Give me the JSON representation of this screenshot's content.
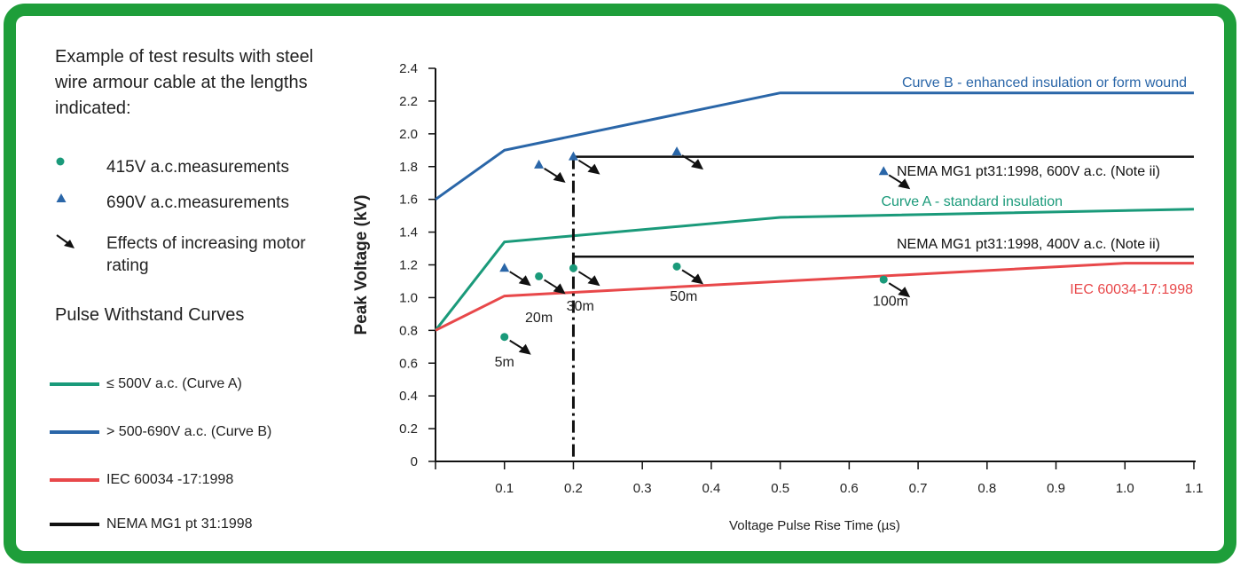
{
  "legend": {
    "intro": "Example of test results with steel wire armour cable at the lengths indicated:",
    "markers": [
      {
        "symbol": "circle",
        "label": "415V a.c.measurements",
        "color": "#1a9a7a"
      },
      {
        "symbol": "triangle",
        "label": "690V a.c.measurements",
        "color": "#2a66a8"
      },
      {
        "symbol": "arrow",
        "label": "Effects of increasing motor rating",
        "color": "#111111"
      }
    ],
    "curves_title": "Pulse Withstand Curves",
    "curves": [
      {
        "label": "≤ 500V a.c. (Curve A)",
        "color": "#1a9a7a"
      },
      {
        "label": "> 500-690V a.c. (Curve B)",
        "color": "#2a66a8"
      },
      {
        "label": "IEC 60034 -17:1998",
        "color": "#e8484a"
      },
      {
        "label": "NEMA MG1 pt 31:1998",
        "color": "#111111"
      }
    ]
  },
  "chart_data": {
    "type": "line",
    "xlabel": "Voltage Pulse Rise Time (µs)",
    "ylabel": "Peak Voltage (kV)",
    "xlim": [
      0,
      1.1
    ],
    "ylim": [
      0,
      2.4
    ],
    "xticks": [
      "0.1",
      "0.2",
      "0.3",
      "0.4",
      "0.5",
      "0.6",
      "0.7",
      "0.8",
      "0.9",
      "1.0",
      "1.1"
    ],
    "yticks": [
      "0",
      "0.2",
      "0.4",
      "0.6",
      "0.8",
      "1.0",
      "1.2",
      "1.4",
      "1.6",
      "1.8",
      "2.0",
      "2.2",
      "2.4"
    ],
    "grid": false,
    "series": [
      {
        "label": "Curve B - enhanced insulation or form wound",
        "color": "#2a66a8",
        "points": [
          [
            0,
            1.6
          ],
          [
            0.1,
            1.9
          ],
          [
            0.5,
            2.25
          ],
          [
            1.1,
            2.25
          ]
        ]
      },
      {
        "label": "Curve A - standard insulation",
        "color": "#1a9a7a",
        "points": [
          [
            0,
            0.8
          ],
          [
            0.1,
            1.34
          ],
          [
            0.5,
            1.49
          ],
          [
            1.1,
            1.54
          ]
        ]
      },
      {
        "label": "IEC 60034-17:1998",
        "color": "#e8484a",
        "points": [
          [
            0,
            0.8
          ],
          [
            0.1,
            1.01
          ],
          [
            1.0,
            1.21
          ],
          [
            1.1,
            1.21
          ]
        ]
      },
      {
        "label": "NEMA MG1 pt31:1998, 600V a.c. (Note ii)",
        "color": "#111111",
        "points": [
          [
            0.2,
            1.86
          ],
          [
            1.1,
            1.86
          ]
        ]
      },
      {
        "label": "NEMA MG1 pt31:1998, 400V a.c. (Note ii)",
        "color": "#111111",
        "points": [
          [
            0.2,
            1.25
          ],
          [
            1.1,
            1.25
          ]
        ]
      }
    ],
    "markers_415V": [
      [
        0.1,
        0.76
      ],
      [
        0.15,
        1.13
      ],
      [
        0.2,
        1.18
      ],
      [
        0.35,
        1.19
      ],
      [
        0.65,
        1.11
      ]
    ],
    "markers_690V": [
      [
        0.1,
        1.18
      ],
      [
        0.15,
        1.81
      ],
      [
        0.2,
        1.86
      ],
      [
        0.35,
        1.89
      ],
      [
        0.65,
        1.77
      ]
    ],
    "length_labels": [
      {
        "text": "5m",
        "x": 0.1,
        "y": 0.58
      },
      {
        "text": "20m",
        "x": 0.15,
        "y": 0.85
      },
      {
        "text": "30m",
        "x": 0.21,
        "y": 0.92
      },
      {
        "text": "50m",
        "x": 0.36,
        "y": 0.98
      },
      {
        "text": "100m",
        "x": 0.66,
        "y": 0.95
      }
    ],
    "dashed_vertical_x": 0.2
  }
}
